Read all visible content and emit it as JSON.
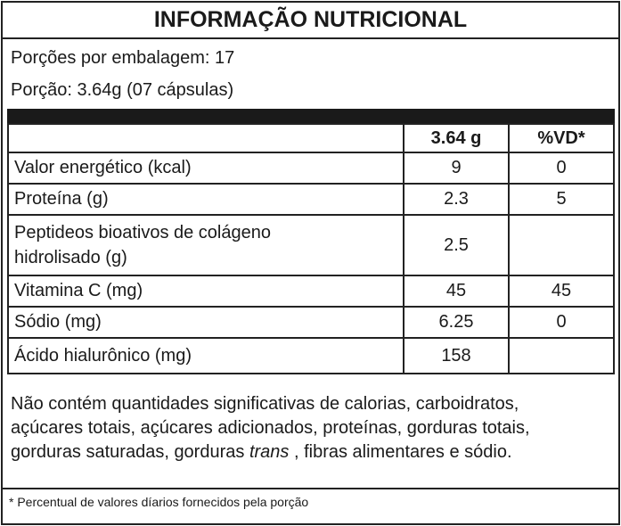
{
  "title": "INFORMAÇÃO NUTRICIONAL",
  "servings_per_package": "Porções por embalagem: 17",
  "serving_size": "Porção: 3.64g (07 cápsulas)",
  "table": {
    "headers": [
      "",
      "3.64 g",
      "%VD*"
    ],
    "rows": [
      {
        "name": "Valor energético (kcal)",
        "amount": "9",
        "dv": "0"
      },
      {
        "name": "Proteína (g)",
        "amount": "2.3",
        "dv": "5"
      },
      {
        "name": "Peptideos bioativos de colágeno hidrolisado (g)",
        "name_line1": "Peptideos bioativos de colágeno",
        "name_line2": "hidrolisado (g)",
        "amount": "2.5",
        "dv": ""
      },
      {
        "name": "Vitamina C (mg)",
        "amount": "45",
        "dv": "45"
      },
      {
        "name": "Sódio (mg)",
        "amount": "6.25",
        "dv": "0"
      },
      {
        "name": "Ácido hialurônico (mg)",
        "amount": "158",
        "dv": ""
      }
    ]
  },
  "note": {
    "line1": "Não contém quantidades significativas de calorias, carboidratos,",
    "line2": "açúcares totais, açúcares adicionados, proteínas, gorduras totais,",
    "line3_a": "gorduras saturadas, gorduras ",
    "line3_italic": "trans",
    "line3_b": " , fibras alimentares e sódio."
  },
  "footnote": "* Percentual de valores díarios fornecidos pela porção"
}
